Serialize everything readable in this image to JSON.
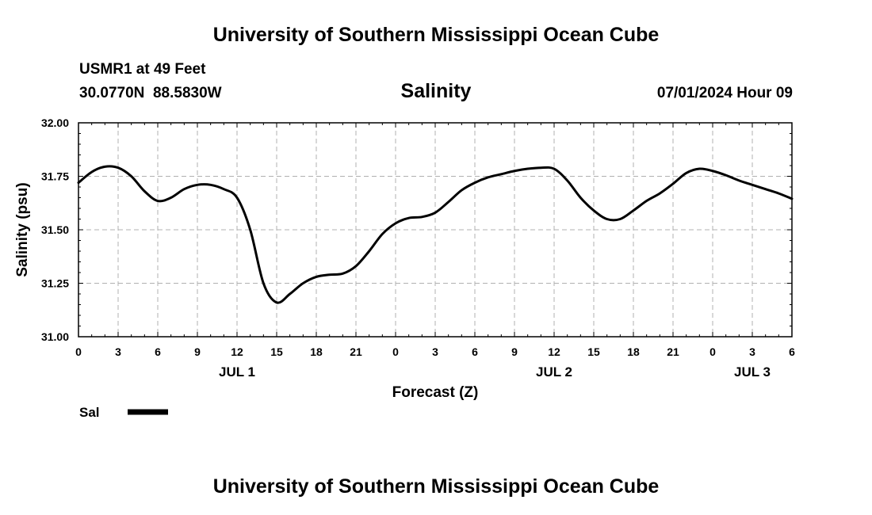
{
  "header": {
    "title": "University of Southern Mississippi Ocean Cube",
    "station": "USMR1 at 49 Feet",
    "coords": "30.0770N  88.5830W",
    "parameter": "Salinity",
    "datetime": "07/01/2024 Hour 09"
  },
  "footer": {
    "title": "University of Southern Mississippi Ocean Cube"
  },
  "legend": {
    "label": "Sal",
    "color": "#000000"
  },
  "chart_data": {
    "type": "line",
    "title": "Salinity",
    "xlabel": "Forecast (Z)",
    "ylabel": "Salinity (psu)",
    "xlim": [
      0,
      54
    ],
    "ylim": [
      31.0,
      32.0
    ],
    "x_tick_values": [
      0,
      3,
      6,
      9,
      12,
      15,
      18,
      21,
      24,
      27,
      30,
      33,
      36,
      39,
      42,
      45,
      48,
      51,
      54
    ],
    "x_tick_labels": [
      "0",
      "3",
      "6",
      "9",
      "12",
      "15",
      "18",
      "21",
      "0",
      "3",
      "6",
      "9",
      "12",
      "15",
      "18",
      "21",
      "0",
      "3",
      "6"
    ],
    "y_tick_values": [
      31.0,
      31.25,
      31.5,
      31.75,
      32.0
    ],
    "y_tick_labels": [
      "31.00",
      "31.25",
      "31.50",
      "31.75",
      "32.00"
    ],
    "day_labels": [
      {
        "x": 12,
        "label": "JUL 1"
      },
      {
        "x": 36,
        "label": "JUL 2"
      },
      {
        "x": 51,
        "label": "JUL 3"
      }
    ],
    "grid": true,
    "series": [
      {
        "name": "Sal",
        "color": "#000000",
        "x": [
          0,
          1,
          2,
          3,
          4,
          5,
          6,
          7,
          8,
          9,
          10,
          11,
          12,
          13,
          14,
          15,
          16,
          17,
          18,
          19,
          20,
          21,
          22,
          23,
          24,
          25,
          26,
          27,
          28,
          29,
          30,
          31,
          32,
          33,
          34,
          35,
          36,
          37,
          38,
          39,
          40,
          41,
          42,
          43,
          44,
          45,
          46,
          47,
          48,
          49,
          50,
          51,
          52,
          53,
          54
        ],
        "y": [
          31.72,
          31.77,
          31.795,
          31.79,
          31.75,
          31.68,
          31.635,
          31.65,
          31.69,
          31.71,
          31.71,
          31.69,
          31.65,
          31.5,
          31.25,
          31.16,
          31.2,
          31.25,
          31.28,
          31.29,
          31.295,
          31.33,
          31.4,
          31.48,
          31.53,
          31.555,
          31.56,
          31.58,
          31.63,
          31.685,
          31.72,
          31.745,
          31.76,
          31.775,
          31.785,
          31.79,
          31.785,
          31.73,
          31.65,
          31.59,
          31.55,
          31.55,
          31.59,
          31.635,
          31.67,
          31.715,
          31.765,
          31.785,
          31.775,
          31.755,
          31.73,
          31.71,
          31.69,
          31.67,
          31.645
        ]
      }
    ]
  }
}
